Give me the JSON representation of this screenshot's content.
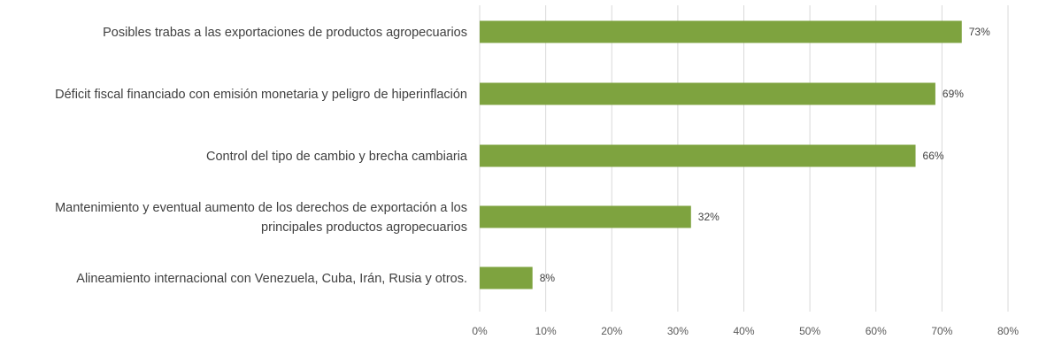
{
  "chart_data": {
    "type": "bar",
    "orientation": "horizontal",
    "categories": [
      "Posibles trabas a las exportaciones de productos agropecuarios",
      "Déficit fiscal financiado con emisión monetaria y peligro de hiperinflación",
      "Control del tipo de cambio y brecha cambiaria",
      "Mantenimiento y eventual aumento de los derechos de exportación a los principales productos agropecuarios",
      "Alineamiento internacional con Venezuela, Cuba, Irán, Rusia y otros."
    ],
    "category_lines": [
      [
        "Posibles trabas a las exportaciones de productos agropecuarios"
      ],
      [
        "Déficit fiscal financiado con emisión monetaria y peligro de hiperinflación"
      ],
      [
        "Control del tipo de cambio y brecha cambiaria"
      ],
      [
        "Mantenimiento y eventual aumento de los derechos de exportación a los",
        "principales productos agropecuarios"
      ],
      [
        "Alineamiento internacional con Venezuela, Cuba, Irán, Rusia y otros."
      ]
    ],
    "values": [
      0.73,
      0.69,
      0.66,
      0.32,
      0.08
    ],
    "data_labels": [
      "73%",
      "69%",
      "66%",
      "32%",
      "8%"
    ],
    "xlim": [
      0,
      0.8
    ],
    "x_ticks": [
      0,
      0.1,
      0.2,
      0.3,
      0.4,
      0.5,
      0.6,
      0.7,
      0.8
    ],
    "x_tick_labels": [
      "0%",
      "10%",
      "20%",
      "30%",
      "40%",
      "50%",
      "60%",
      "70%",
      "80%"
    ],
    "grid": "vertical",
    "bar_color": "#7ea33f",
    "grid_color": "#d9d9d9",
    "title": "",
    "xlabel": "",
    "ylabel": ""
  }
}
